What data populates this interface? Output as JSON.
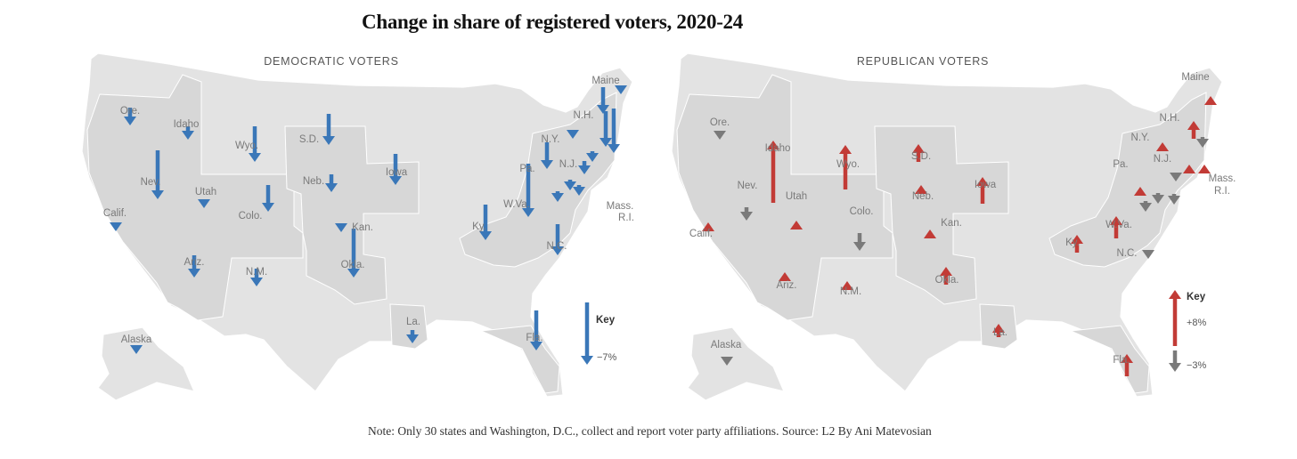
{
  "title": "Change in share of registered voters, 2020-24",
  "note": "Note: Only 30 states and Washington, D.C., collect and report voter party affiliations.  Source: L2  By Ani Matevosian",
  "colors": {
    "democratic_decrease": "#3a77b8",
    "republican_increase": "#c23b36",
    "republican_decrease": "#7a7a7a",
    "land": "#e3e3e3",
    "highlight": "#d7d7d7",
    "label": "#7a7a7a"
  },
  "chart_data": [
    {
      "type": "map",
      "title": "DEMOCRATIC VOTERS",
      "unit": "percentage-point change in share of registered voters, 2020-24",
      "key": {
        "value": -7,
        "label": "−7%"
      },
      "states": [
        {
          "label": "Ore.",
          "value": -2
        },
        {
          "label": "Idaho",
          "value": -1.5
        },
        {
          "label": "Calif.",
          "value": -1
        },
        {
          "label": "Nev.",
          "value": -5.5
        },
        {
          "label": "Utah",
          "value": -1
        },
        {
          "label": "Ariz.",
          "value": -2.5
        },
        {
          "label": "Alaska",
          "value": -1
        },
        {
          "label": "Wyo.",
          "value": -4
        },
        {
          "label": "Colo.",
          "value": -3
        },
        {
          "label": "N.M.",
          "value": -2
        },
        {
          "label": "S.D.",
          "value": -3.5
        },
        {
          "label": "Neb.",
          "value": -2
        },
        {
          "label": "Kan.",
          "value": -1
        },
        {
          "label": "Okla.",
          "value": -5.5
        },
        {
          "label": "Iowa",
          "value": -3.5
        },
        {
          "label": "La.",
          "value": -1.5
        },
        {
          "label": "Ky.",
          "value": -4
        },
        {
          "label": "W.Va.",
          "value": -6
        },
        {
          "label": "N.C.",
          "value": -3.5
        },
        {
          "label": "Fla.",
          "value": -4.5
        },
        {
          "label": "Pa.",
          "value": -3
        },
        {
          "label": "N.Y.",
          "value": -1
        },
        {
          "label": "N.J.",
          "value": -1.5
        },
        {
          "label": "N.H.",
          "value": -3
        },
        {
          "label": "Maine",
          "value": -1
        },
        {
          "label": "Mass.",
          "value": -5
        },
        {
          "label": "R.I.",
          "value": -4
        }
      ]
    },
    {
      "type": "map",
      "title": "REPUBLICAN VOTERS",
      "unit": "percentage-point change in share of registered voters, 2020-24",
      "key": [
        {
          "value": 8,
          "label": "+8%"
        },
        {
          "value": -3,
          "label": "−3%"
        }
      ],
      "key_title": "Key",
      "states": [
        {
          "label": "Ore.",
          "value": -1
        },
        {
          "label": "Idaho",
          "value": 7
        },
        {
          "label": "Calif.",
          "value": 1
        },
        {
          "label": "Nev.",
          "value": -1.5
        },
        {
          "label": "Utah",
          "value": 1
        },
        {
          "label": "Ariz.",
          "value": 1
        },
        {
          "label": "Alaska",
          "value": -1
        },
        {
          "label": "Wyo.",
          "value": 5
        },
        {
          "label": "Colo.",
          "value": -2
        },
        {
          "label": "N.M.",
          "value": 1
        },
        {
          "label": "S.D.",
          "value": 2
        },
        {
          "label": "Neb.",
          "value": 1
        },
        {
          "label": "Kan.",
          "value": 1
        },
        {
          "label": "Okla.",
          "value": 2
        },
        {
          "label": "Iowa",
          "value": 3
        },
        {
          "label": "La.",
          "value": 1.5
        },
        {
          "label": "Ky.",
          "value": 2
        },
        {
          "label": "W.Va.",
          "value": 2.5
        },
        {
          "label": "N.C.",
          "value": -1
        },
        {
          "label": "Fla.",
          "value": 2.5
        },
        {
          "label": "Pa.",
          "value": 1
        },
        {
          "label": "N.Y.",
          "value": 1
        },
        {
          "label": "N.J.",
          "value": 1
        },
        {
          "label": "N.H.",
          "value": 2
        },
        {
          "label": "Maine",
          "value": 1
        },
        {
          "label": "Mass.",
          "value": 1
        },
        {
          "label": "R.I.",
          "value": -1
        },
        {
          "label": "",
          "value": -1
        },
        {
          "label": "",
          "value": -1
        }
      ]
    }
  ]
}
